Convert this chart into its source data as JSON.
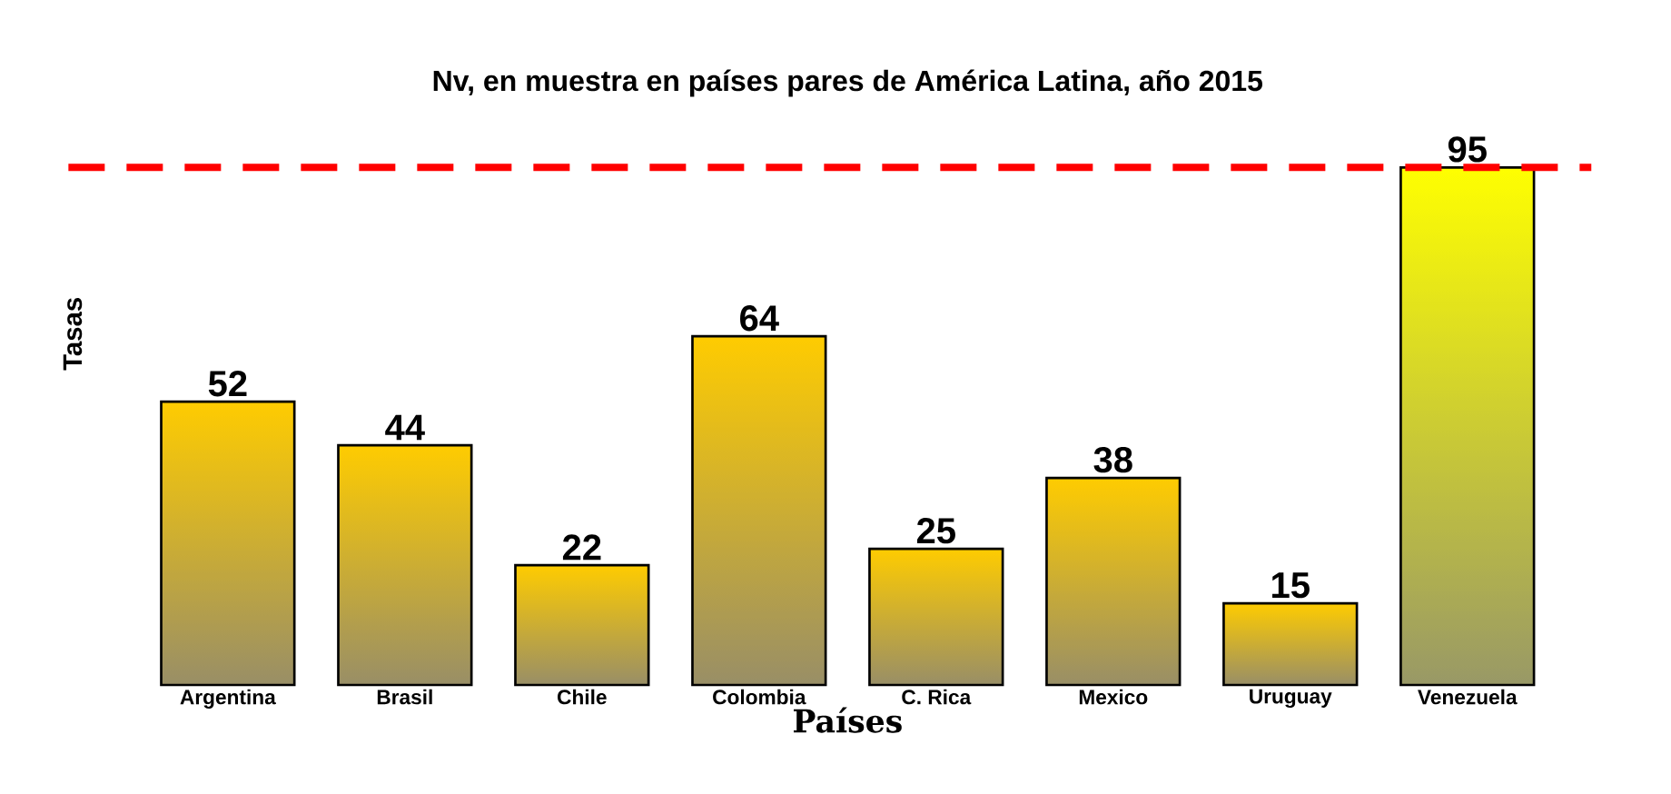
{
  "chart_data": {
    "type": "bar",
    "title": "Nv, en muestra en países pares de América Latina, año 2015",
    "xlabel": "Países",
    "ylabel": "Tasas",
    "categories": [
      "Argentina",
      "Brasil",
      "Chile",
      "Colombia",
      "C. Rica",
      "Mexico",
      "Uruguay",
      "Venezuela"
    ],
    "values": [
      52,
      44,
      22,
      64,
      25,
      38,
      15,
      95
    ],
    "colors": [
      "#ffcc00",
      "#ffcc00",
      "#ffcc00",
      "#ffcc00",
      "#ffcc00",
      "#ffcc00",
      "#ffcc00",
      "#ffff00"
    ],
    "data_labels": true,
    "ref_lines": [
      {
        "axis": "y",
        "value": 95,
        "color": "#ff0000",
        "line_style": "dashed"
      }
    ]
  }
}
